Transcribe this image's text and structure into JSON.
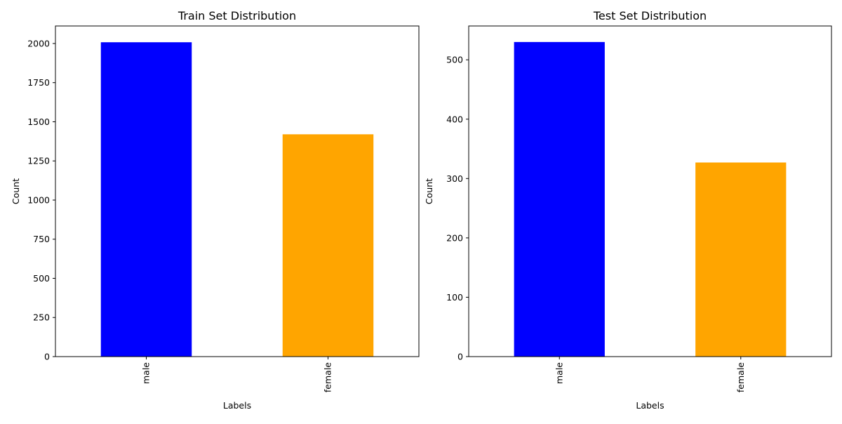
{
  "chart_data": [
    {
      "type": "bar",
      "title": "Train Set Distribution",
      "xlabel": "Labels",
      "ylabel": "Count",
      "categories": [
        "male",
        "female"
      ],
      "values": [
        2008,
        1420
      ],
      "colors": [
        "#0000ff",
        "#ffa500"
      ],
      "ylim": [
        0,
        2112
      ],
      "yticks": [
        0,
        250,
        500,
        750,
        1000,
        1250,
        1500,
        1750,
        2000
      ],
      "xtick_rotation": "vertical",
      "grid": false,
      "legend": "none"
    },
    {
      "type": "bar",
      "title": "Test Set Distribution",
      "xlabel": "Labels",
      "ylabel": "Count",
      "categories": [
        "male",
        "female"
      ],
      "values": [
        530,
        327
      ],
      "colors": [
        "#0000ff",
        "#ffa500"
      ],
      "ylim": [
        0,
        557
      ],
      "yticks": [
        0,
        100,
        200,
        300,
        400,
        500
      ],
      "xtick_rotation": "vertical",
      "grid": false,
      "legend": "none"
    }
  ]
}
